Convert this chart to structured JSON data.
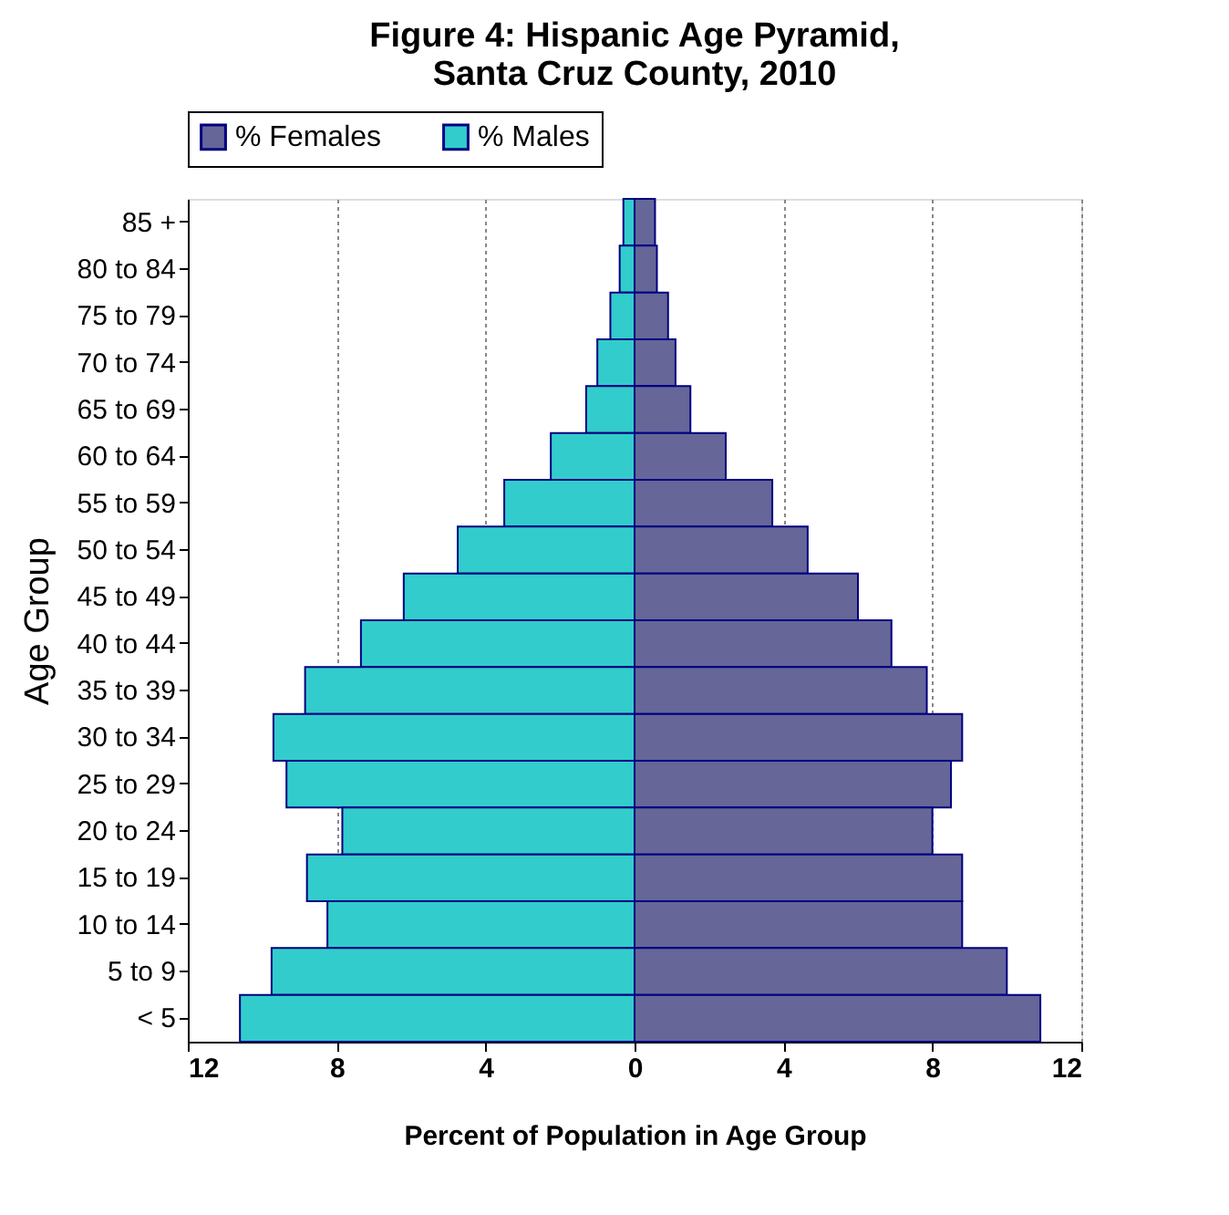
{
  "chart_data": {
    "type": "bar",
    "orientation": "horizontal",
    "title": "Figure 4:  Hispanic Age Pyramid,\nSanta Cruz County, 2010",
    "xlabel": "Percent of Population in Age Group",
    "ylabel": "Age Group",
    "categories": [
      "85 +",
      "80 to 84",
      "75 to 79",
      "70 to 74",
      "65 to 69",
      "60 to 64",
      "55 to 59",
      "50 to 54",
      "45 to 49",
      "40 to 44",
      "35 to 39",
      "30 to 34",
      "25 to 29",
      "20 to 24",
      "15 to 19",
      "10 to 14",
      "5 to 9",
      "< 5"
    ],
    "series": [
      {
        "name": "% Females",
        "color": "#666699",
        "values": [
          0.55,
          0.6,
          0.9,
          1.1,
          1.5,
          2.45,
          3.7,
          4.65,
          6.0,
          6.9,
          7.85,
          8.8,
          8.5,
          8.0,
          8.8,
          8.8,
          10.0,
          10.9
        ]
      },
      {
        "name": "% Males",
        "color": "#33cccc",
        "values": [
          -0.3,
          -0.4,
          -0.65,
          -1.0,
          -1.3,
          -2.25,
          -3.5,
          -4.75,
          -6.2,
          -7.35,
          -8.85,
          -9.7,
          -9.35,
          -7.85,
          -8.8,
          -8.25,
          -9.75,
          -10.6
        ]
      }
    ],
    "xlim": [
      -12,
      12
    ],
    "xticks": [
      {
        "value": -12,
        "label": "12"
      },
      {
        "value": -8,
        "label": "8"
      },
      {
        "value": -4,
        "label": "4"
      },
      0,
      4,
      8,
      12
    ],
    "grid": "x",
    "legend": "top",
    "stacked": true
  }
}
